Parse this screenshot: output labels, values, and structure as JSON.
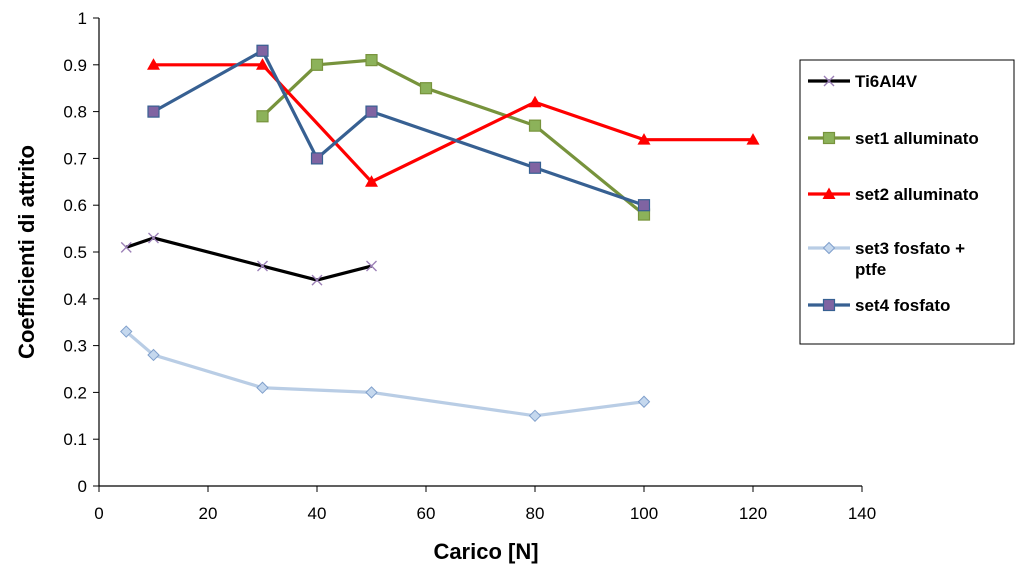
{
  "chart_data": {
    "type": "line",
    "title": "",
    "xlabel": "Carico [N]",
    "ylabel": "Coefficienti di attrito",
    "xlim": [
      0,
      140
    ],
    "ylim": [
      0,
      1
    ],
    "xticks": [
      0,
      20,
      40,
      60,
      80,
      100,
      120,
      140
    ],
    "yticks": [
      0,
      0.1,
      0.2,
      0.3,
      0.4,
      0.5,
      0.6,
      0.7,
      0.8,
      0.9,
      1
    ],
    "xtick_labels": [
      "0",
      "20",
      "40",
      "60",
      "80",
      "100",
      "120",
      "140"
    ],
    "ytick_labels": [
      "0",
      "0.1",
      "0.2",
      "0.3",
      "0.4",
      "0.5",
      "0.6",
      "0.7",
      "0.8",
      "0.9",
      "1"
    ],
    "grid": false,
    "legend_position": "right",
    "series": [
      {
        "name": "Ti6Al4V",
        "legend_lines": [
          "Ti6Al4V"
        ],
        "color": "#000000",
        "marker": "x",
        "marker_color": "#9b7fb6",
        "x": [
          5,
          10,
          30,
          40,
          50
        ],
        "y": [
          0.51,
          0.53,
          0.47,
          0.44,
          0.47
        ]
      },
      {
        "name": "set1 alluminato",
        "legend_lines": [
          "set1 alluminato"
        ],
        "color": "#77933c",
        "marker": "square",
        "marker_color": "#8cb25a",
        "x": [
          30,
          40,
          50,
          60,
          80,
          100
        ],
        "y": [
          0.79,
          0.9,
          0.91,
          0.85,
          0.77,
          0.58
        ]
      },
      {
        "name": "set2 alluminato",
        "legend_lines": [
          "set2 alluminato"
        ],
        "color": "#ff0000",
        "marker": "triangle",
        "marker_color": "#ff0000",
        "x": [
          10,
          30,
          50,
          80,
          100,
          120
        ],
        "y": [
          0.9,
          0.9,
          0.65,
          0.82,
          0.74,
          0.74
        ]
      },
      {
        "name": "set3 fosfato + ptfe",
        "legend_lines": [
          "set3 fosfato +",
          "ptfe"
        ],
        "color": "#b9cde5",
        "marker": "diamond",
        "marker_color": "#b9cde5",
        "x": [
          5,
          10,
          30,
          50,
          80,
          100
        ],
        "y": [
          0.33,
          0.28,
          0.21,
          0.2,
          0.15,
          0.18
        ]
      },
      {
        "name": "set4 fosfato",
        "legend_lines": [
          "set4 fosfato"
        ],
        "color": "#376092",
        "marker": "square",
        "marker_color": "#8064a2",
        "x": [
          10,
          30,
          40,
          50,
          80,
          100
        ],
        "y": [
          0.8,
          0.93,
          0.7,
          0.8,
          0.68,
          0.6
        ]
      }
    ]
  }
}
